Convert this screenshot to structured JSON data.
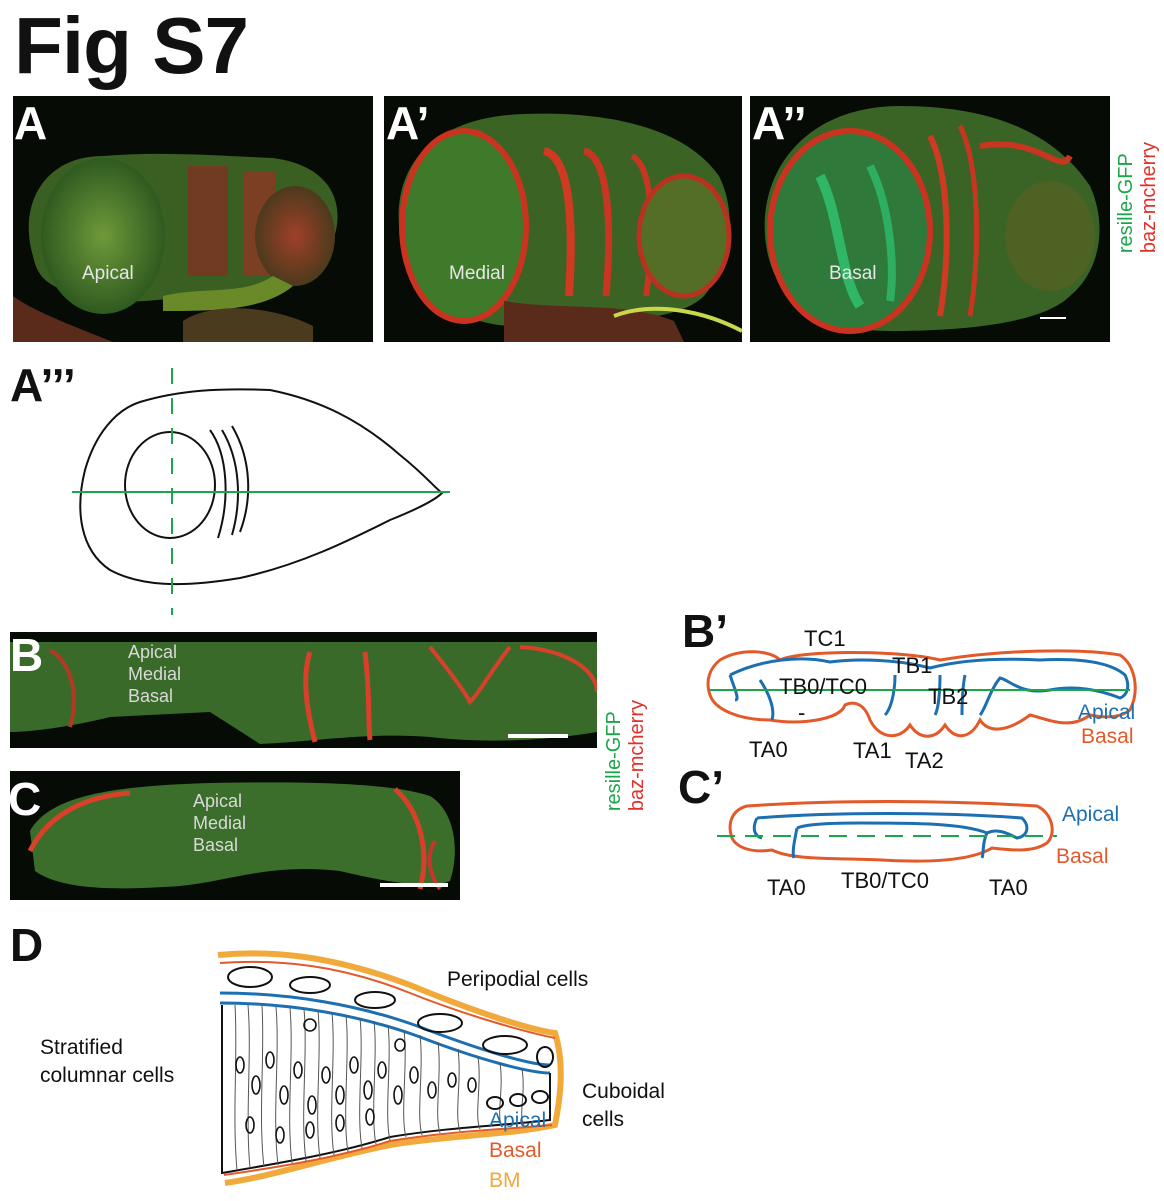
{
  "figure_title": "Fig S7",
  "panels": {
    "A": {
      "letter": "A",
      "label": "Apical"
    },
    "A1": {
      "letter": "A’",
      "label": "Medial"
    },
    "A2": {
      "letter": "A’’",
      "label": "Basal"
    },
    "A3": {
      "letter": "A’’’"
    },
    "B": {
      "letter": "B",
      "stack": [
        "Apical",
        "Medial",
        "Basal"
      ]
    },
    "C": {
      "letter": "C",
      "stack": [
        "Apical",
        "Medial",
        "Basal"
      ]
    },
    "B1": {
      "letter": "B’",
      "labels": [
        "TC1",
        "TB1",
        "TB0/TC0",
        "TB2",
        "TA0",
        "TA1",
        "TA2",
        "-"
      ],
      "apical": "Apical",
      "basal": "Basal"
    },
    "C1": {
      "letter": "C’",
      "labels": [
        "TA0",
        "TB0/TC0",
        "TA0"
      ],
      "apical": "Apical",
      "basal": "Basal"
    },
    "D": {
      "letter": "D",
      "peripodial": "Peripodial cells",
      "stratified_1": "Stratified",
      "stratified_2": "columnar cells",
      "cuboidal_1": "Cuboidal",
      "cuboidal_2": "cells",
      "apical": "Apical",
      "basal": "Basal",
      "bm": "BM"
    }
  },
  "channel_legend": {
    "green": "resille-GFP",
    "red": "baz-mcherry"
  },
  "colors": {
    "green": "#1aa64a",
    "red": "#e0312a",
    "apical_blue": "#1c6fb0",
    "basal_orange": "#e35a2a",
    "bm_yellow": "#f2a93b"
  }
}
